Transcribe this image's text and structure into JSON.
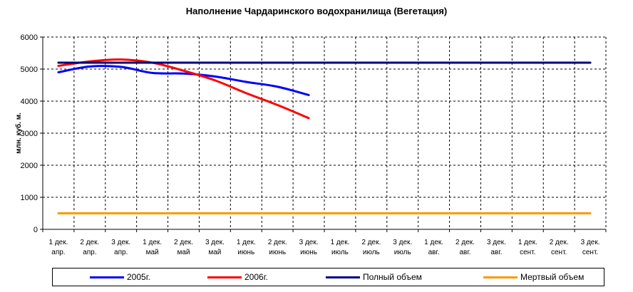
{
  "chart_data": {
    "type": "line",
    "title": "Наполнение Чардаринского водохранилища (Вегетация)",
    "ylabel": "млн. куб. м.",
    "xlabel": "",
    "ylim": [
      0,
      6000
    ],
    "yticks": [
      0,
      1000,
      2000,
      3000,
      4000,
      5000,
      6000
    ],
    "categories": [
      [
        "1 дек.",
        "апр."
      ],
      [
        "2 дек.",
        "апр."
      ],
      [
        "3 дек.",
        "апр."
      ],
      [
        "1 дек.",
        "май"
      ],
      [
        "2 дек.",
        "май"
      ],
      [
        "3 дек.",
        "май"
      ],
      [
        "1 дек.",
        "июнь"
      ],
      [
        "2 дек.",
        "июнь"
      ],
      [
        "3 дек.",
        "июнь"
      ],
      [
        "1 дек.",
        "июль"
      ],
      [
        "2 дек.",
        "июль"
      ],
      [
        "3 дек.",
        "июль"
      ],
      [
        "1 дек.",
        "авг."
      ],
      [
        "2 дек.",
        "авг."
      ],
      [
        "3 дек.",
        "авг."
      ],
      [
        "1 дек.",
        "сент."
      ],
      [
        "2 дек.",
        "сент."
      ],
      [
        "3 дек.",
        "сент."
      ]
    ],
    "grid": true,
    "legend_position": "bottom",
    "series": [
      {
        "name": "2005г.",
        "color": "#0000ff",
        "values": [
          4900,
          5080,
          5070,
          4880,
          4860,
          4770,
          4600,
          4450,
          4190,
          null,
          null,
          null,
          null,
          null,
          null,
          null,
          null,
          null
        ]
      },
      {
        "name": "2006г.",
        "color": "#ff0000",
        "values": [
          5100,
          5240,
          5300,
          5200,
          4950,
          4650,
          4250,
          3880,
          3470,
          null,
          null,
          null,
          null,
          null,
          null,
          null,
          null,
          null
        ]
      },
      {
        "name": "Полный объем",
        "color": "#000080",
        "values": [
          5200,
          5200,
          5200,
          5200,
          5200,
          5200,
          5200,
          5200,
          5200,
          5200,
          5200,
          5200,
          5200,
          5200,
          5200,
          5200,
          5200,
          5200
        ]
      },
      {
        "name": "Мертвый объем",
        "color": "#ff9900",
        "values": [
          500,
          500,
          500,
          500,
          500,
          500,
          500,
          500,
          500,
          500,
          500,
          500,
          500,
          500,
          500,
          500,
          500,
          500
        ]
      }
    ]
  }
}
